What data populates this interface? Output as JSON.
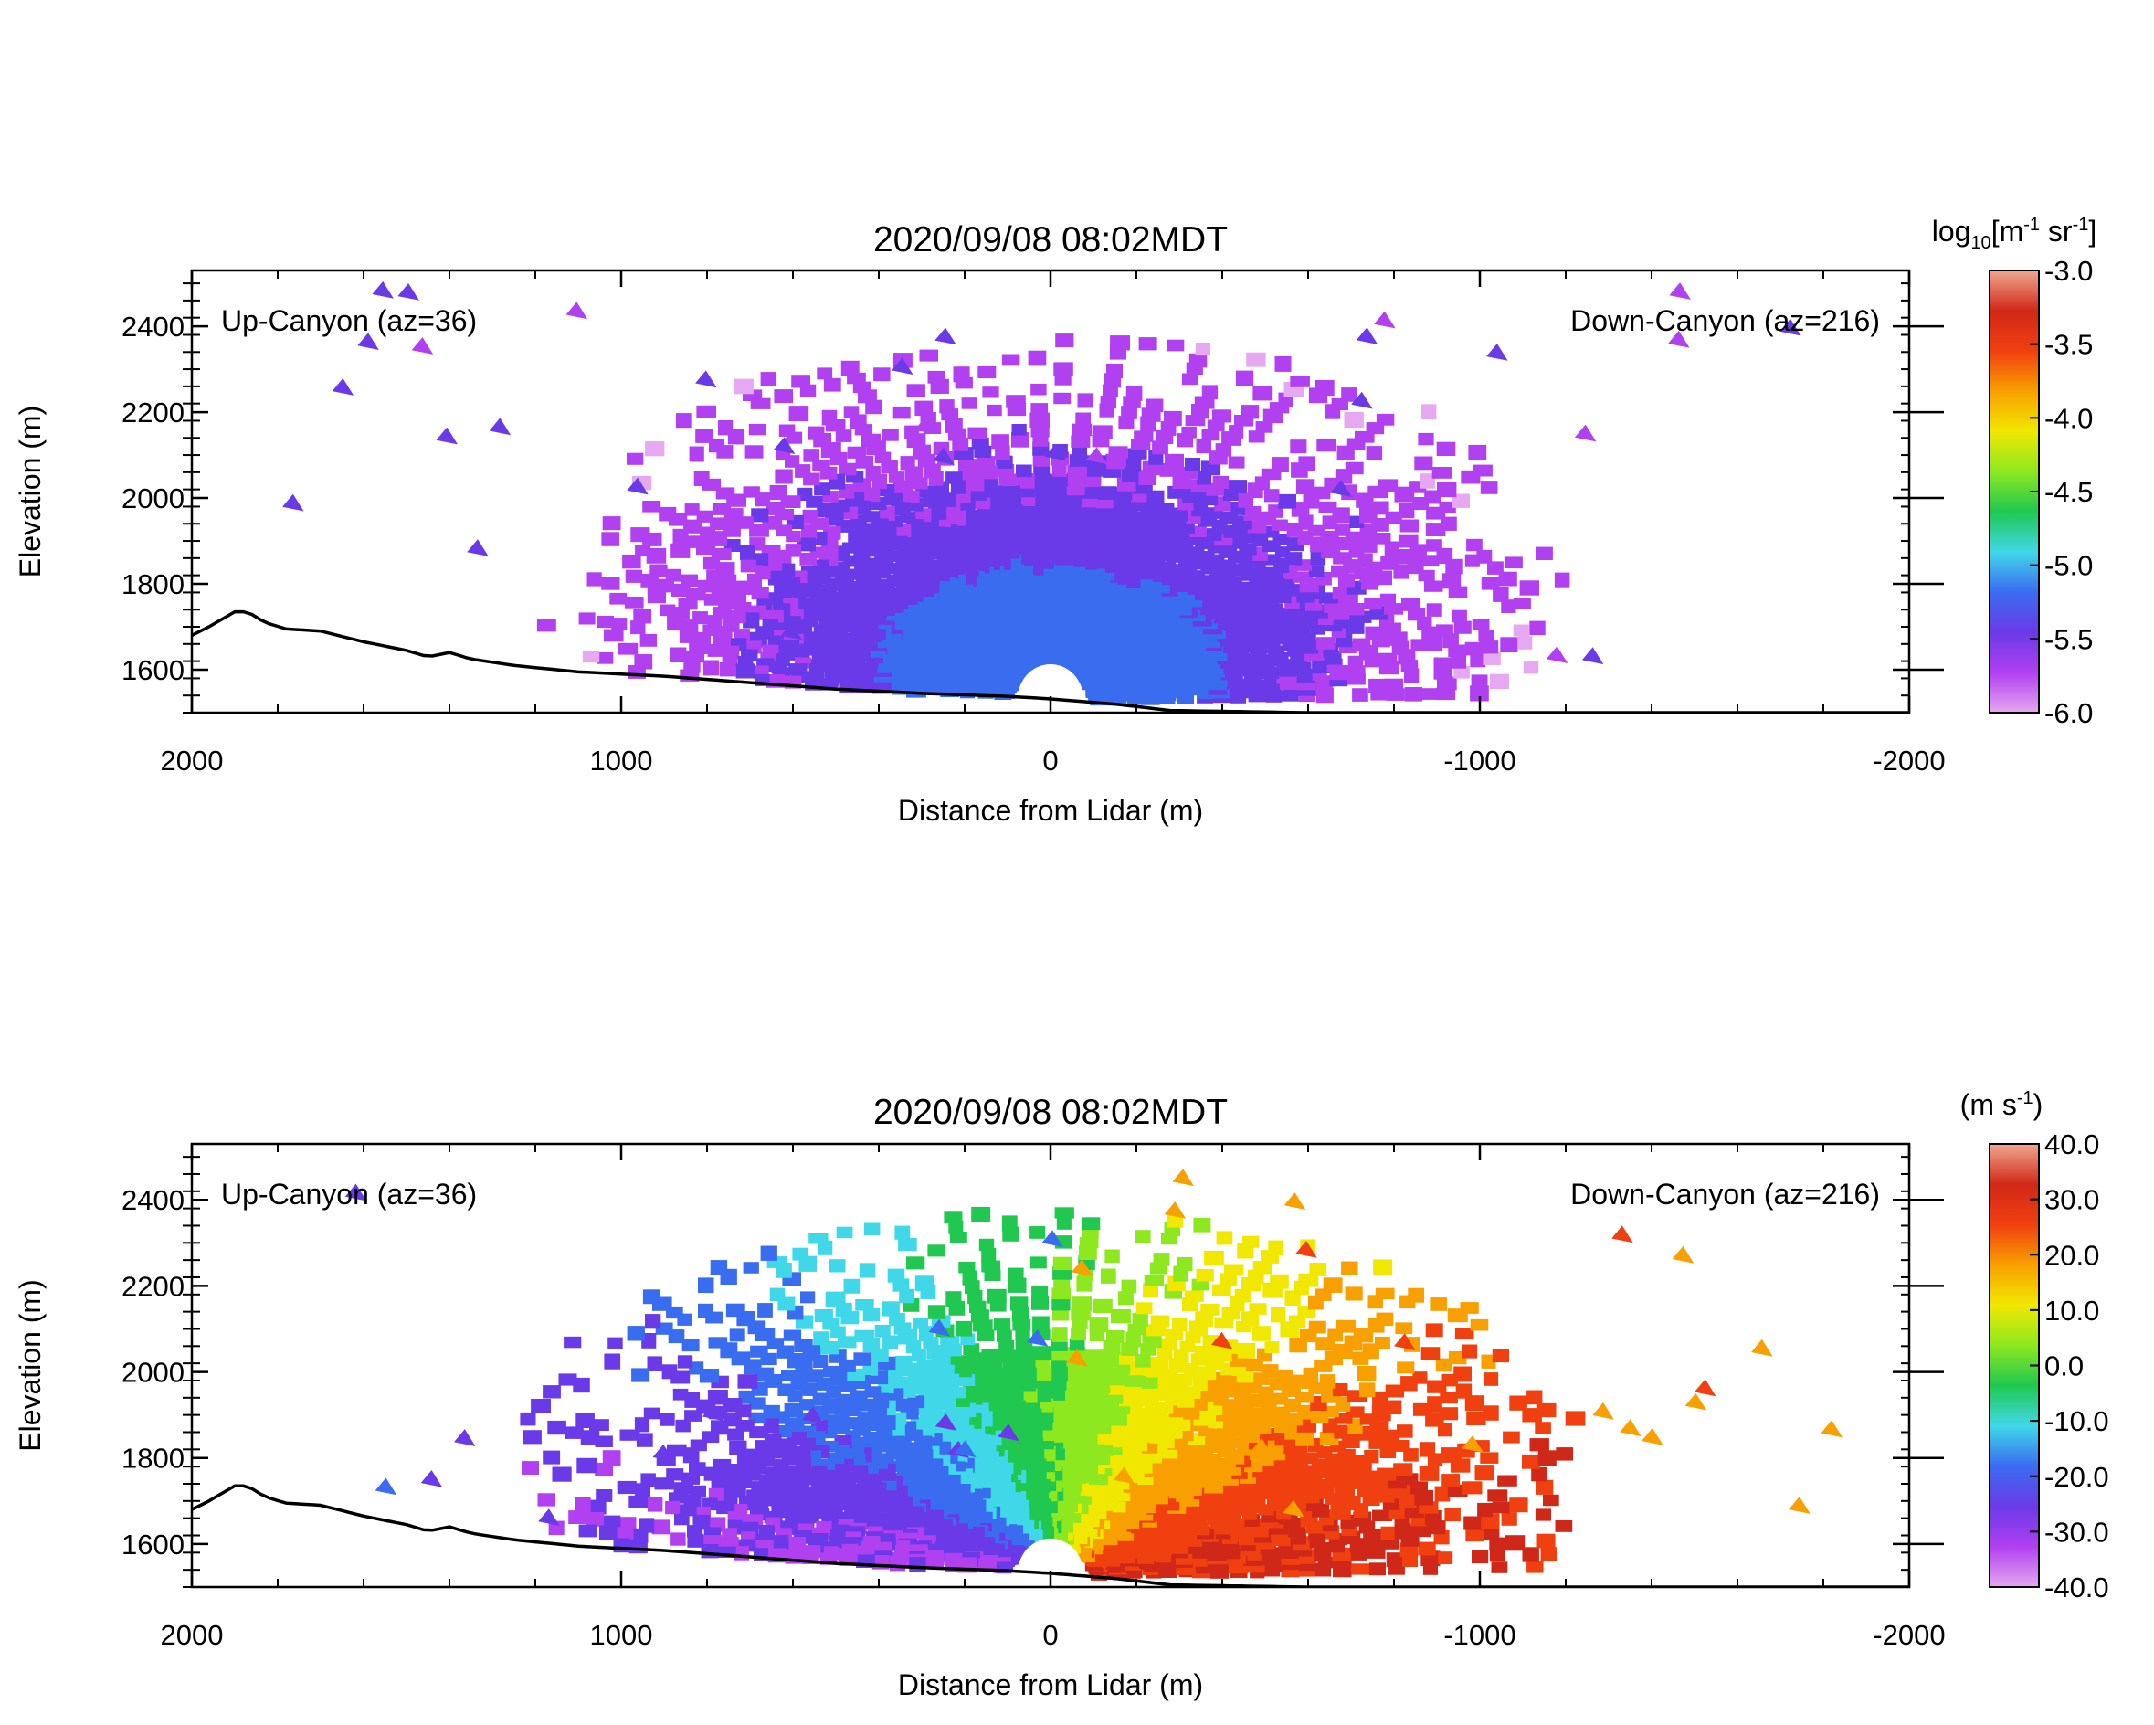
{
  "chart_data": [
    {
      "type": "heatmap",
      "title": "2020/09/08 08:02MDT",
      "xlabel": "Distance from Lidar (m)",
      "ylabel": "Elevation (m)",
      "xlim": [
        2000,
        -2000
      ],
      "ylim": [
        1500,
        2530
      ],
      "x_ticks": [
        "2000",
        "1000",
        "0",
        "-1000",
        "-2000"
      ],
      "y_ticks": [
        "1600",
        "1800",
        "2000",
        "2200",
        "2400"
      ],
      "annotations": {
        "left": "Up-Canyon (az=36)",
        "right": "Down-Canyon (az=216)"
      },
      "colorbar": {
        "title_main": "log",
        "title_sub": "10",
        "title_units": "[m",
        "title_exp1": "-1",
        "title_units2": " sr",
        "title_exp2": "-1",
        "title_close": "]",
        "range": [
          -6.0,
          -3.0
        ],
        "tick_labels": [
          "-3.0",
          "-3.5",
          "-4.0",
          "-4.5",
          "-5.0",
          "-5.5",
          "-6.0"
        ],
        "colors": [
          "#e6a8f0",
          "#b040f0",
          "#6a3ae8",
          "#3a6cf0",
          "#40d8e8",
          "#20c850",
          "#8de820",
          "#f0e800",
          "#f8a000",
          "#f04010",
          "#d02818",
          "#f0a890"
        ]
      },
      "field": "backscatter",
      "grid": false
    },
    {
      "type": "heatmap",
      "title": "2020/09/08 08:02MDT",
      "xlabel": "Distance from Lidar (m)",
      "ylabel": "Elevation (m)",
      "xlim": [
        2000,
        -2000
      ],
      "ylim": [
        1500,
        2530
      ],
      "x_ticks": [
        "2000",
        "1000",
        "0",
        "-1000",
        "-2000"
      ],
      "y_ticks": [
        "1600",
        "1800",
        "2000",
        "2200",
        "2400"
      ],
      "annotations": {
        "left": "Up-Canyon (az=36)",
        "right": "Down-Canyon (az=216)"
      },
      "colorbar": {
        "title_main": "(m s",
        "title_exp1": "-1",
        "title_close": ")",
        "range": [
          -40.0,
          40.0
        ],
        "tick_labels": [
          "40.0",
          "30.0",
          "20.0",
          "10.0",
          "0.0",
          "-10.0",
          "-20.0",
          "-30.0",
          "-40.0"
        ],
        "colors": [
          "#e6a8f0",
          "#b040f0",
          "#6a3ae8",
          "#3a6cf0",
          "#40d8e8",
          "#20c850",
          "#8de820",
          "#f0e800",
          "#f8a000",
          "#f04010",
          "#d02818",
          "#f0a890"
        ]
      },
      "field": "radial_velocity",
      "grid": false
    }
  ]
}
